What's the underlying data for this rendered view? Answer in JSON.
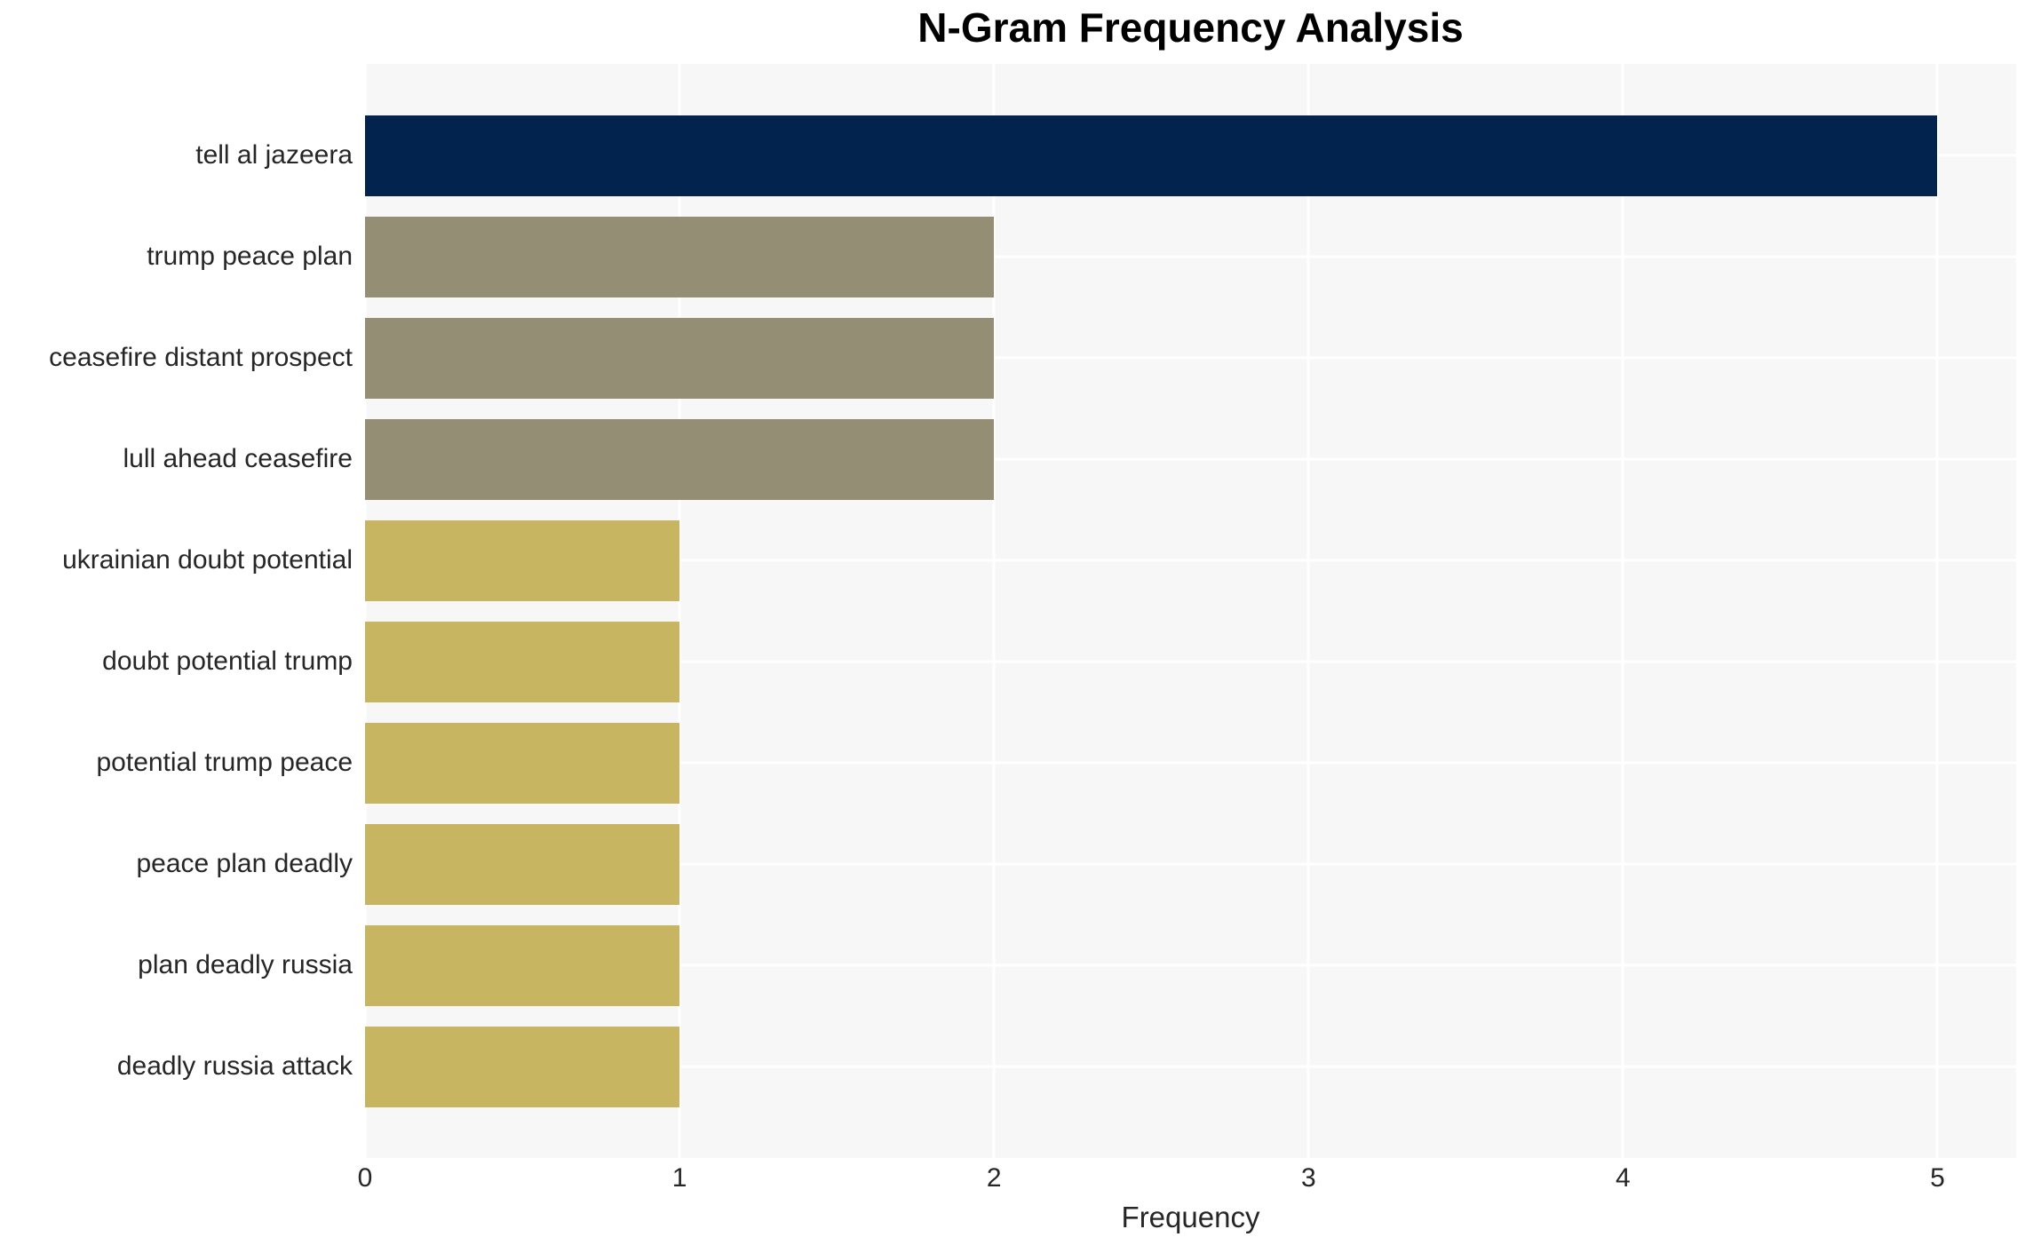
{
  "chart_data": {
    "type": "bar",
    "orientation": "horizontal",
    "title": "N-Gram Frequency Analysis",
    "xlabel": "Frequency",
    "ylabel": "",
    "categories": [
      "tell al jazeera",
      "trump peace plan",
      "ceasefire distant prospect",
      "lull ahead ceasefire",
      "ukrainian doubt potential",
      "doubt potential trump",
      "potential trump peace",
      "peace plan deadly",
      "plan deadly russia",
      "deadly russia attack"
    ],
    "values": [
      5,
      2,
      2,
      2,
      1,
      1,
      1,
      1,
      1,
      1
    ],
    "bar_colors": [
      "#02234e",
      "#948e75",
      "#948e75",
      "#948e75",
      "#c8b561",
      "#c8b561",
      "#c8b561",
      "#c8b561",
      "#c8b561",
      "#c8b561"
    ],
    "xticks": [
      0,
      1,
      2,
      3,
      4,
      5
    ],
    "xlim": [
      0,
      5.25
    ],
    "grid": true,
    "legend": null,
    "colors": {
      "plot_background": "#f7f7f7",
      "figure_background": "#ffffff",
      "gridline": "#ffffff",
      "text": "#262626",
      "title_text": "#000000"
    }
  }
}
